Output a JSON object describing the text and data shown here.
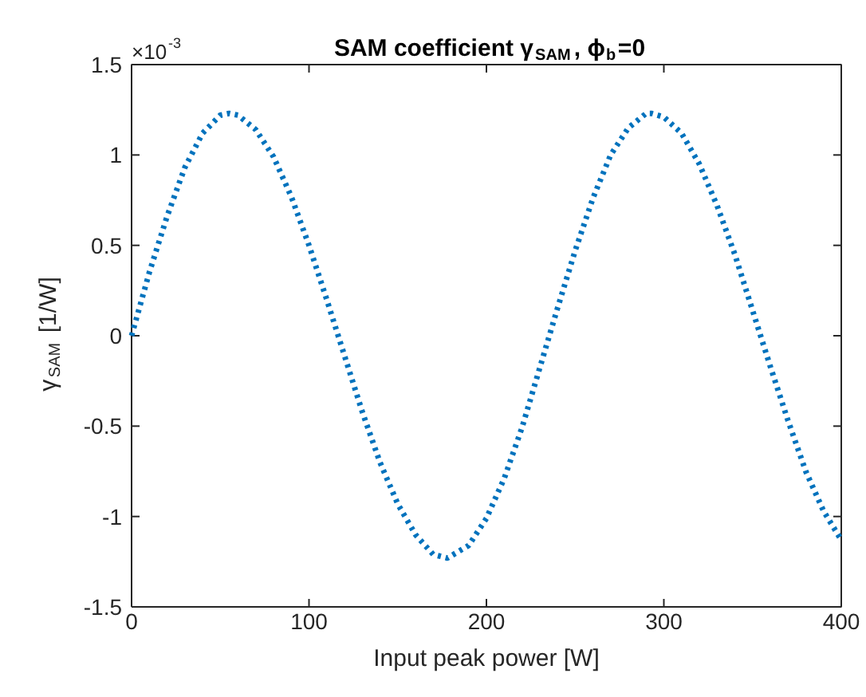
{
  "chart_data": {
    "type": "line",
    "title": "SAM coefficient γ$_{SAM}$, ϕ$_{b}$=0",
    "xlabel": "Input peak power [W]",
    "ylabel": "γ$_{SAM}$ [1/W]",
    "annotations": [
      "×10$^{-3}$"
    ],
    "x": [
      0,
      10,
      20,
      30,
      40,
      50,
      55,
      60,
      70,
      80,
      90,
      100,
      110,
      120,
      130,
      140,
      150,
      160,
      170,
      178,
      190,
      200,
      210,
      220,
      230,
      240,
      250,
      260,
      270,
      280,
      290,
      293,
      300,
      310,
      320,
      330,
      340,
      350,
      360,
      370,
      380,
      390,
      400
    ],
    "series": [
      {
        "color": "#0072bd",
        "values": [
          0.0,
          0.35,
          0.66,
          0.93,
          1.12,
          1.22,
          1.23,
          1.22,
          1.14,
          0.99,
          0.77,
          0.5,
          0.2,
          -0.11,
          -0.42,
          -0.7,
          -0.93,
          -1.1,
          -1.21,
          -1.23,
          -1.16,
          -1.01,
          -0.79,
          -0.51,
          -0.18,
          0.15,
          0.47,
          0.76,
          1.0,
          1.15,
          1.23,
          1.23,
          1.21,
          1.12,
          0.95,
          0.72,
          0.45,
          0.14,
          -0.17,
          -0.47,
          -0.75,
          -0.97,
          -1.13
        ]
      }
    ],
    "xlim": [
      0,
      400
    ],
    "xticks": [
      0,
      100,
      200,
      300,
      400
    ],
    "ylim": [
      -1.5,
      1.5
    ],
    "yticks": [
      -1.5,
      -1,
      -0.5,
      0,
      0.5,
      1,
      1.5
    ],
    "grid": false,
    "marker": "none",
    "line_style": "dotted"
  }
}
